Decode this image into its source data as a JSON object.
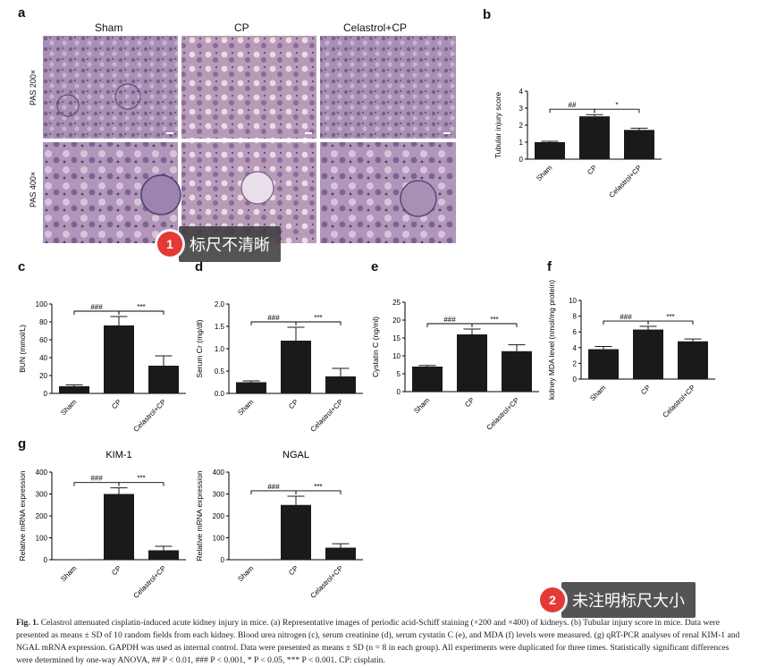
{
  "figure": {
    "panel_letters": {
      "a": "a",
      "b": "b",
      "c": "c",
      "d": "d",
      "e": "e",
      "f": "f",
      "g": "g"
    },
    "micrograph": {
      "columns": [
        "Sham",
        "CP",
        "Celastrol+CP"
      ],
      "rows": [
        "PAS 200×",
        "PAS 400×"
      ]
    },
    "caption": {
      "label": "Fig. 1.",
      "text": "Celastrol attenuated cisplatin-induced acute kidney injury in mice. (a) Representative images of periodic acid-Schiff staining (×200 and ×400) of kidneys. (b) Tubular injury score in mice. Data were presented as means ± SD of 10 random fields from each kidney. Blood urea nitrogen (c), serum creatinine (d), serum cystatin C (e), and MDA (f) levels were measured. (g) qRT-PCR analyses of renal KIM-1 and NGAL mRNA expression. GAPDH was used as internal control. Data were presented as means ± SD (n = 8 in each group). All experiments were duplicated for three times. Statistically significant differences were determined by one-way ANOVA, ## P < 0.01, ### P < 0.001, * P < 0.05, *** P < 0.001. CP: cisplatin."
    }
  },
  "callouts": [
    {
      "num": "1",
      "text": "标尺不清晰"
    },
    {
      "num": "2",
      "text": "未注明标尺大小"
    }
  ],
  "chart_data": [
    {
      "id": "b",
      "type": "bar",
      "categories": [
        "Sham",
        "CP",
        "Celastrol+CP"
      ],
      "values": [
        1.0,
        2.52,
        1.72
      ],
      "errors": [
        0.05,
        0.1,
        0.1
      ],
      "ylabel": "Tubular injury score",
      "ylim": [
        0,
        4
      ],
      "yticks": [
        0,
        1,
        2,
        3,
        4
      ],
      "sig": [
        {
          "from": 0,
          "to": 1,
          "label": "##"
        },
        {
          "from": 1,
          "to": 2,
          "label": "*"
        }
      ]
    },
    {
      "id": "c",
      "type": "bar",
      "categories": [
        "Sham",
        "CP",
        "Celastrol+CP"
      ],
      "values": [
        8,
        76,
        31
      ],
      "errors": [
        1.5,
        10,
        11
      ],
      "ylabel": "BUN (mmol/L)",
      "ylim": [
        0,
        100
      ],
      "yticks": [
        0,
        20,
        40,
        60,
        80,
        100
      ],
      "sig": [
        {
          "from": 0,
          "to": 1,
          "label": "###"
        },
        {
          "from": 1,
          "to": 2,
          "label": "***"
        }
      ]
    },
    {
      "id": "d",
      "type": "bar",
      "categories": [
        "Sham",
        "CP",
        "Celastrol+CP"
      ],
      "values": [
        0.25,
        1.18,
        0.38
      ],
      "errors": [
        0.03,
        0.3,
        0.18
      ],
      "ylabel": "Serum Cr (mg/dl)",
      "ylim": [
        0,
        2.0
      ],
      "yticks": [
        0.0,
        0.5,
        1.0,
        1.5,
        2.0
      ],
      "sig": [
        {
          "from": 0,
          "to": 1,
          "label": "###"
        },
        {
          "from": 1,
          "to": 2,
          "label": "***"
        }
      ]
    },
    {
      "id": "e",
      "type": "bar",
      "categories": [
        "Sham",
        "CP",
        "Celastrol+CP"
      ],
      "values": [
        7.0,
        16.0,
        11.3
      ],
      "errors": [
        0.3,
        1.5,
        1.8
      ],
      "ylabel": "Cystatin C (ng/ml)",
      "ylim": [
        0,
        25
      ],
      "yticks": [
        0,
        5,
        10,
        15,
        20,
        25
      ],
      "sig": [
        {
          "from": 0,
          "to": 1,
          "label": "###"
        },
        {
          "from": 1,
          "to": 2,
          "label": "***"
        }
      ]
    },
    {
      "id": "f",
      "type": "bar",
      "categories": [
        "Sham",
        "CP",
        "Celastrol+CP"
      ],
      "values": [
        3.8,
        6.3,
        4.8
      ],
      "errors": [
        0.35,
        0.4,
        0.3
      ],
      "ylabel": "kidney MDA level (nmol/mg protein)",
      "ylim": [
        0,
        10
      ],
      "yticks": [
        0,
        2,
        4,
        6,
        8,
        10
      ],
      "sig": [
        {
          "from": 0,
          "to": 1,
          "label": "###"
        },
        {
          "from": 1,
          "to": 2,
          "label": "***"
        }
      ]
    },
    {
      "id": "g1",
      "type": "bar",
      "title": "KIM-1",
      "categories": [
        "Sham",
        "CP",
        "Celastrol+CP"
      ],
      "values": [
        1,
        300,
        43
      ],
      "errors": [
        0,
        28,
        18
      ],
      "ylabel": "Relative mRNA expression",
      "ylim": [
        0,
        400
      ],
      "yticks": [
        0,
        100,
        200,
        300,
        400
      ],
      "sig": [
        {
          "from": 0,
          "to": 1,
          "label": "###"
        },
        {
          "from": 1,
          "to": 2,
          "label": "***"
        }
      ]
    },
    {
      "id": "g2",
      "type": "bar",
      "title": "NGAL",
      "categories": [
        "Sham",
        "CP",
        "Celastrol+CP"
      ],
      "values": [
        1,
        250,
        55
      ],
      "errors": [
        0,
        40,
        18
      ],
      "ylabel": "Relative mRNA expression",
      "ylim": [
        0,
        400
      ],
      "yticks": [
        0,
        100,
        200,
        300,
        400
      ],
      "sig": [
        {
          "from": 0,
          "to": 1,
          "label": "###"
        },
        {
          "from": 1,
          "to": 2,
          "label": "***"
        }
      ]
    }
  ]
}
